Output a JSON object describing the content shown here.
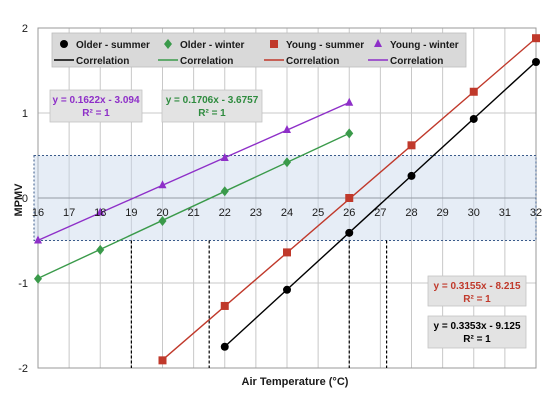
{
  "chart_data": {
    "type": "line",
    "xlabel": "Air Temperature (°C)",
    "ylabel": "MPMV",
    "xlim": [
      16,
      32
    ],
    "ylim": [
      -2,
      2
    ],
    "x_ticks": [
      "16",
      "17",
      "18",
      "19",
      "20",
      "21",
      "22",
      "23",
      "24",
      "25",
      "26",
      "27",
      "28",
      "29",
      "30",
      "31",
      "32"
    ],
    "y_ticks": [
      "2",
      "1",
      "0",
      "-1",
      "-2"
    ],
    "grid": true,
    "legend_position": "top",
    "comfort_band": [
      -0.5,
      0.5
    ],
    "series": [
      {
        "name": "Older - summer",
        "color": "#000000",
        "marker": "circle",
        "x": [
          22,
          24,
          26,
          28,
          30,
          32
        ],
        "y": [
          -1.75,
          -1.08,
          -0.41,
          0.26,
          0.93,
          1.6
        ],
        "fit": {
          "slope": 0.3353,
          "intercept": -9.125,
          "x_range": [
            22,
            32
          ]
        }
      },
      {
        "name": "Older - winter",
        "color": "#3a9a4a",
        "marker": "diamond",
        "x": [
          16,
          18,
          20,
          22,
          24,
          26
        ],
        "y": [
          -0.95,
          -0.61,
          -0.27,
          0.08,
          0.42,
          0.76
        ],
        "fit": {
          "slope": 0.1706,
          "intercept": -3.6757,
          "x_range": [
            16,
            26
          ]
        }
      },
      {
        "name": "Young - summer",
        "color": "#c0392b",
        "marker": "square",
        "x": [
          20,
          22,
          24,
          26,
          28,
          30,
          32
        ],
        "y": [
          -1.91,
          -1.27,
          -0.64,
          0.0,
          0.62,
          1.25,
          1.88
        ],
        "fit": {
          "slope": 0.3155,
          "intercept": -8.215,
          "x_range": [
            20,
            32
          ]
        }
      },
      {
        "name": "Young - winter",
        "color": "#8e2fc8",
        "marker": "triangle",
        "x": [
          16,
          18,
          20,
          22,
          24,
          26
        ],
        "y": [
          -0.5,
          -0.17,
          0.15,
          0.47,
          0.8,
          1.12
        ],
        "fit": {
          "slope": 0.1622,
          "intercept": -3.094,
          "x_range": [
            16,
            26
          ]
        }
      }
    ],
    "legend": [
      {
        "label": "Older - summer",
        "color": "#000000",
        "kind": "marker",
        "marker": "circle"
      },
      {
        "label": "Older - winter",
        "color": "#3a9a4a",
        "kind": "marker",
        "marker": "diamond"
      },
      {
        "label": "Young - summer",
        "color": "#c0392b",
        "kind": "marker",
        "marker": "square"
      },
      {
        "label": "Young - winter",
        "color": "#8e2fc8",
        "kind": "marker",
        "marker": "triangle"
      },
      {
        "label": "Correlation",
        "color": "#000000",
        "kind": "line"
      },
      {
        "label": "Correlation",
        "color": "#3a9a4a",
        "kind": "line"
      },
      {
        "label": "Correlation",
        "color": "#c0392b",
        "kind": "line"
      },
      {
        "label": "Correlation",
        "color": "#8e2fc8",
        "kind": "line"
      }
    ],
    "equations": [
      {
        "eq": "y = 0.1622x - 3.094",
        "r2": "R² = 1",
        "color": "#8e2fc8"
      },
      {
        "eq": "y = 0.1706x - 3.6757",
        "r2": "R² = 1",
        "color": "#2e8b3e"
      },
      {
        "eq": "y = 0.3155x - 8.215",
        "r2": "R² = 1",
        "color": "#c0392b"
      },
      {
        "eq": "y = 0.3353x - 9.125",
        "r2": "R² = 1",
        "color": "#000000"
      }
    ],
    "reference_x": [
      19.0,
      21.5,
      26.0,
      27.2
    ]
  }
}
